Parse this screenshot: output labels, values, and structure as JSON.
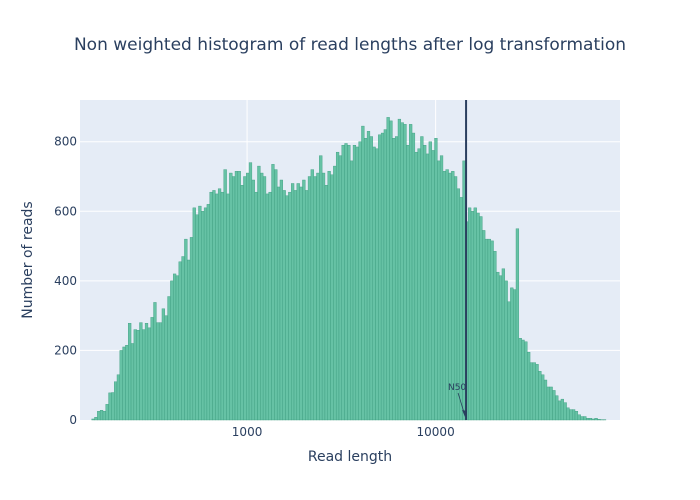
{
  "chart_data": {
    "type": "bar",
    "title": "Non weighted histogram of read lengths after log transformation",
    "xlabel": "Read length",
    "ylabel": "Number of reads",
    "x_scale": "log",
    "xlim": [
      130,
      95000
    ],
    "ylim": [
      0,
      920
    ],
    "x_ticks": [
      {
        "value": 1000,
        "label": "1000"
      },
      {
        "value": 10000,
        "label": "10000"
      }
    ],
    "y_ticks": [
      {
        "value": 0,
        "label": "0"
      },
      {
        "value": 200,
        "label": "200"
      },
      {
        "value": 400,
        "label": "400"
      },
      {
        "value": 600,
        "label": "600"
      },
      {
        "value": 800,
        "label": "800"
      }
    ],
    "bin_edge_first": 150,
    "bin_edge_last": 80000,
    "values": [
      3,
      8,
      25,
      28,
      25,
      45,
      78,
      79,
      110,
      130,
      200,
      210,
      215,
      278,
      220,
      260,
      258,
      280,
      260,
      278,
      265,
      295,
      338,
      280,
      280,
      320,
      300,
      355,
      400,
      420,
      415,
      455,
      470,
      520,
      460,
      525,
      610,
      590,
      615,
      600,
      610,
      620,
      655,
      660,
      650,
      665,
      655,
      720,
      650,
      710,
      700,
      715,
      715,
      675,
      700,
      710,
      740,
      690,
      655,
      730,
      710,
      700,
      650,
      655,
      735,
      720,
      670,
      690,
      660,
      645,
      655,
      680,
      660,
      680,
      670,
      690,
      660,
      700,
      720,
      700,
      710,
      760,
      710,
      675,
      715,
      705,
      730,
      770,
      760,
      790,
      795,
      790,
      745,
      790,
      785,
      800,
      845,
      810,
      830,
      815,
      785,
      780,
      820,
      825,
      835,
      870,
      860,
      810,
      815,
      865,
      855,
      850,
      790,
      850,
      825,
      770,
      780,
      815,
      790,
      765,
      800,
      775,
      810,
      745,
      760,
      715,
      720,
      710,
      715,
      700,
      665,
      640,
      745,
      570,
      610,
      600,
      610,
      595,
      585,
      545,
      520,
      520,
      515,
      485,
      425,
      415,
      435,
      400,
      340,
      380,
      375,
      550,
      235,
      230,
      225,
      195,
      165,
      165,
      160,
      140,
      130,
      115,
      95,
      95,
      85,
      70,
      55,
      60,
      50,
      35,
      30,
      30,
      25,
      15,
      10,
      10,
      5,
      5,
      3,
      5,
      2,
      1,
      1
    ],
    "annotations": [
      {
        "text": "N50",
        "x": 14500,
        "line": "vertical"
      }
    ],
    "colors": {
      "bar": "#66c2a5",
      "bar_outline": "#3b9c7e",
      "plot_bg": "#e5ecf6",
      "grid": "#ffffff",
      "n50_line": "#2a3f5f",
      "text": "#2a3f5f"
    },
    "grid": true,
    "legend": "none"
  }
}
